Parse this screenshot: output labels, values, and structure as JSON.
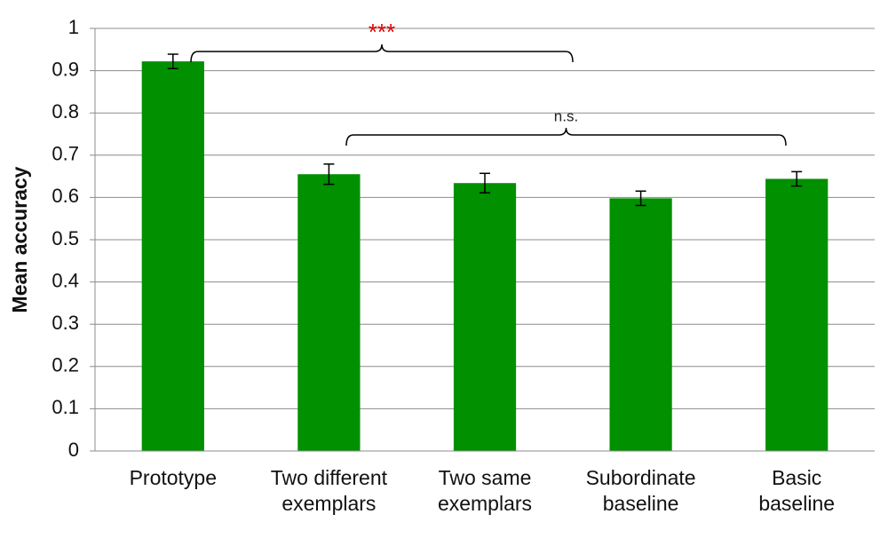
{
  "chart_data": {
    "type": "bar",
    "ylabel": "Mean accuracy",
    "categories": [
      "Prototype",
      "Two different\nexemplars",
      "Two same\nexemplars",
      "Subordinate\nbaseline",
      "Basic\nbaseline"
    ],
    "values": [
      0.922,
      0.655,
      0.634,
      0.598,
      0.644
    ],
    "errors": [
      0.017,
      0.024,
      0.023,
      0.017,
      0.017
    ],
    "color": "#009000",
    "ylim": [
      0,
      1
    ],
    "yticks": [
      0,
      0.1,
      0.2,
      0.3,
      0.4,
      0.5,
      0.6,
      0.7,
      0.8,
      0.9,
      1
    ],
    "grid": true,
    "annotations": [
      {
        "text": "***",
        "color": "#e00000"
      },
      {
        "text": "n.s.",
        "color": "#222222"
      }
    ]
  }
}
